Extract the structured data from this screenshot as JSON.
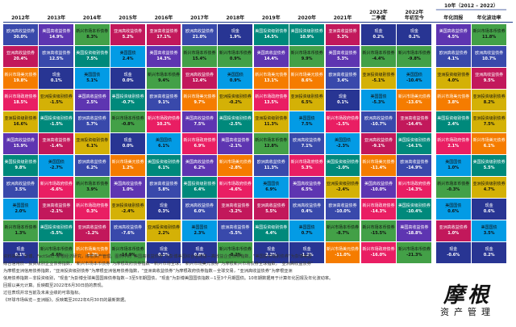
{
  "palette": {
    "欧洲高收益债券": "#3949ab",
    "美国高收益债券": "#5e35b1",
    "美国投资级别债券": "#00897b",
    "亚洲高收益债券": "#c2185b",
    "新兴市场美元债券": "#f57c00",
    "新兴市场本币债券": "#43a047",
    "现金": "#283593",
    "美国国债": "#039be5",
    "新兴市场政府债券": "#e91e63",
    "亚洲投资级别债券": "#d4b106",
    "环球国库债券": "#6a1b9a"
  },
  "chart_data": {
    "type": "table",
    "columns": [
      {
        "header": "2012年"
      },
      {
        "header": "2013年"
      },
      {
        "header": "2014年"
      },
      {
        "header": "2015年"
      },
      {
        "header": "2016年"
      },
      {
        "header": "2017年"
      },
      {
        "header": "2018年"
      },
      {
        "header": "2019年"
      },
      {
        "header": "2020年"
      },
      {
        "header": "2021年"
      },
      {
        "header": "2022年\n二季度"
      },
      {
        "header": "2022年\n年初至今"
      },
      {
        "header": "年化回报"
      },
      {
        "header": "年化波动率"
      }
    ],
    "group_header": "10年（2012 – 2022）",
    "cells": [
      [
        [
          "欧洲高收益债券",
          "30.0%"
        ],
        [
          "美国高收益债券",
          "14.9%"
        ],
        [
          "新兴市场本币债券",
          "8.3%"
        ],
        [
          "亚洲高收益债券",
          "5.2%"
        ],
        [
          "亚洲高收益债券",
          "17.1%"
        ],
        [
          "欧洲高收益债券",
          "21.0%"
        ],
        [
          "现金",
          "1.9%"
        ],
        [
          "美国投资级别债券",
          "14.5%"
        ],
        [
          "美国投资级别债券",
          "10.9%"
        ],
        [
          "亚洲高收益债券",
          "5.3%"
        ],
        [
          "现金",
          "0.2%"
        ],
        [
          "现金",
          "0.2%"
        ],
        [
          "美国高收益债券",
          "4.5%"
        ],
        [
          "新兴市场本币债券",
          "11.8%"
        ]
      ],
      [
        [
          "亚洲高收益债券",
          "20.4%"
        ],
        [
          "欧洲高收益债券",
          "12.5%"
        ],
        [
          "美国投资级别债券",
          "7.5%"
        ],
        [
          "美国国债",
          "2.4%"
        ],
        [
          "美国高收益债券",
          "14.3%"
        ],
        [
          "新兴市场本币债券",
          "15.4%"
        ],
        [
          "新兴市场本币债券",
          "0.9%"
        ],
        [
          "美国高收益债券",
          "14.4%"
        ],
        [
          "新兴市场本币债券",
          "9.9%"
        ],
        [
          "美国高收益债券",
          "5.3%"
        ],
        [
          "新兴市场本币债券",
          "-4.4%"
        ],
        [
          "新兴市场本币债券",
          "-9.8%"
        ],
        [
          "欧洲高收益债券",
          "4.1%"
        ],
        [
          "欧洲高收益债券",
          "10.7%"
        ]
      ],
      [
        [
          "新兴市场美元债券",
          "19.8%"
        ],
        [
          "现金",
          "0.1%"
        ],
        [
          "美国国债",
          "5.1%"
        ],
        [
          "现金",
          "0.0%"
        ],
        [
          "新兴市场本币债券",
          "9.4%"
        ],
        [
          "亚洲高收益债券",
          "12.4%"
        ],
        [
          "美国国债",
          "0.9%"
        ],
        [
          "新兴市场美元债券",
          "13.1%"
        ],
        [
          "新兴市场美元债券",
          "8.6%"
        ],
        [
          "欧洲高收益债券",
          "3.4%"
        ],
        [
          "亚洲投资级别债券",
          "-5.1%"
        ],
        [
          "美国国债",
          "-10.4%"
        ],
        [
          "亚洲投资级别债券",
          "4.0%"
        ],
        [
          "亚洲高收益债券",
          "9.5%"
        ]
      ],
      [
        [
          "新兴市场政府债券",
          "18.5%"
        ],
        [
          "亚洲投资级别债券",
          "-1.5%"
        ],
        [
          "美国高收益债券",
          "2.5%"
        ],
        [
          "美国投资级别债券",
          "-0.7%"
        ],
        [
          "欧洲高收益债券",
          "9.1%"
        ],
        [
          "新兴市场美元债券",
          "9.7%"
        ],
        [
          "亚洲投资级别债券",
          "-0.2%"
        ],
        [
          "新兴市场政府债券",
          "13.5%"
        ],
        [
          "亚洲投资级别债券",
          "6.5%"
        ],
        [
          "现金",
          "0.1%"
        ],
        [
          "美国国债",
          "-5.3%"
        ],
        [
          "新兴市场美元债券",
          "-13.6%"
        ],
        [
          "新兴市场美元债券",
          "3.8%"
        ],
        [
          "亚洲投资级别债券",
          "8.2%"
        ]
      ],
      [
        [
          "亚洲投资级别债券",
          "16.6%"
        ],
        [
          "美国投资级别债券",
          "-1.5%"
        ],
        [
          "欧洲高收益债券",
          "5.7%"
        ],
        [
          "新兴市场本币债券",
          "-0.8%"
        ],
        [
          "新兴市场政府债券",
          "10.2%"
        ],
        [
          "美国高收益债券",
          "7.5%"
        ],
        [
          "美国投资级别债券",
          "-2.5%"
        ],
        [
          "亚洲投资级别债券",
          "11.3%"
        ],
        [
          "美国国债",
          "7.5%"
        ],
        [
          "新兴市场政府债券",
          "-1.5%"
        ],
        [
          "欧洲高收益债券",
          "-10.7%"
        ],
        [
          "亚洲高收益债券",
          "-14.4%"
        ],
        [
          "美国投资级别债券",
          "2.4%"
        ],
        [
          "亚洲投资级别债券",
          "7.5%"
        ]
      ],
      [
        [
          "美国高收益债券",
          "15.9%"
        ],
        [
          "亚洲高收益债券",
          "-1.4%"
        ],
        [
          "亚洲投资级别债券",
          "6.1%"
        ],
        [
          "现金",
          "0.0%"
        ],
        [
          "美国国债",
          "6.1%"
        ],
        [
          "新兴市场政府债券",
          "6.9%"
        ],
        [
          "美国高收益债券",
          "-2.1%"
        ],
        [
          "新兴市场本币债券",
          "12.8%"
        ],
        [
          "欧洲高收益债券",
          "7.1%"
        ],
        [
          "美国国债",
          "-2.3%"
        ],
        [
          "亚洲高收益债券",
          "-9.1%"
        ],
        [
          "美国投资级别债券",
          "-14.1%"
        ],
        [
          "新兴市场政府债券",
          "2.1%"
        ],
        [
          "新兴市场美元债券",
          "6.1%"
        ]
      ],
      [
        [
          "美国投资级别债券",
          "9.8%"
        ],
        [
          "美国国债",
          "-2.7%"
        ],
        [
          "欧洲高收益债券",
          "6.2%"
        ],
        [
          "新兴市场美元债券",
          "1.2%"
        ],
        [
          "美国投资级别债券",
          "6.1%"
        ],
        [
          "美国高收益债券",
          "6.2%"
        ],
        [
          "新兴市场美元债券",
          "-2.8%"
        ],
        [
          "欧洲高收益债券",
          "11.3%"
        ],
        [
          "新兴市场政府债券",
          "5.3%"
        ],
        [
          "美国投资级别债券",
          "-1.0%"
        ],
        [
          "新兴市场美元债券",
          "-11.4%"
        ],
        [
          "欧洲高收益债券",
          "-14.9%"
        ],
        [
          "美国国债",
          "1.0%"
        ],
        [
          "美国投资级别债券",
          "5.5%"
        ]
      ],
      [
        [
          "欧洲高收益债券",
          "3.5%"
        ],
        [
          "新兴市场政府债券",
          "-6.6%"
        ],
        [
          "新兴市场本币债券",
          "3.9%"
        ],
        [
          "美国高收益债券",
          "1.0%"
        ],
        [
          "欧洲高收益债券",
          "5.8%"
        ],
        [
          "美国投资级别债券",
          "6.4%"
        ],
        [
          "新兴市场政府债券",
          "-4.6%"
        ],
        [
          "美国国债",
          "6.9%"
        ],
        [
          "美国高收益债券",
          "6.5%"
        ],
        [
          "亚洲投资级别债券",
          "-2.4%"
        ],
        [
          "美国高收益债券",
          "-10.0%"
        ],
        [
          "新兴市场政府债券",
          "-14.3%"
        ],
        [
          "新兴市场本币债券",
          "-0.3%"
        ],
        [
          "亚洲投资级别债券",
          "4.7%"
        ]
      ],
      [
        [
          "美国国债",
          "2.0%"
        ],
        [
          "亚洲高收益债券",
          "-2.1%"
        ],
        [
          "新兴市场政府债券",
          "0.3%"
        ],
        [
          "亚洲投资级别债券",
          "-2.4%"
        ],
        [
          "现金",
          "0.3%"
        ],
        [
          "欧洲高收益债券",
          "6.0%"
        ],
        [
          "亚洲高收益债券",
          "-3.2%"
        ],
        [
          "亚洲高收益债券",
          "5.5%"
        ],
        [
          "欧洲高收益债券",
          "0.4%"
        ],
        [
          "欧洲高收益债券",
          "-10.0%"
        ],
        [
          "新兴市场政府债券",
          "-14.3%"
        ],
        [
          "美国投资级别债券",
          "-10.4%"
        ],
        [
          "美国国债",
          "0.6%"
        ],
        [
          "现金",
          "0.6%"
        ]
      ],
      [
        [
          "新兴市场本币债券",
          "1.3%"
        ],
        [
          "美国投资级别债券",
          "-5.5%"
        ],
        [
          "亚洲高收益债券",
          "-1.2%"
        ],
        [
          "欧洲高收益债券",
          "-7.6%"
        ],
        [
          "亚洲投资级别债券",
          "2.2%"
        ],
        [
          "美国国债",
          "2.3%"
        ],
        [
          "欧洲高收益债券",
          "-5.5%"
        ],
        [
          "美国投资级别债券",
          "4.4%"
        ],
        [
          "美国国债",
          "0.7%"
        ],
        [
          "新兴市场本币债券",
          "-8.7%"
        ],
        [
          "新兴市场本币债券",
          "-15.5%"
        ],
        [
          "美国高收益债券",
          "-18.8%"
        ],
        [
          "亚洲高收益债券",
          "1.0%"
        ],
        [
          "美国国债",
          "3.5%"
        ]
      ],
      [
        [
          "现金",
          "0.1%"
        ],
        [
          "新兴市场本币债券",
          "-6.6%"
        ],
        [
          "新兴市场美元债券",
          "-1.2%"
        ],
        [
          "新兴市场本币债券",
          "-14.9%"
        ],
        [
          "现金",
          "0.3%"
        ],
        [
          "现金",
          "0.8%"
        ],
        [
          "新兴市场本币债券",
          "-8.2%"
        ],
        [
          "现金",
          "2.2%"
        ],
        [
          "现金",
          "-1.2%"
        ],
        [
          "新兴市场美元债券",
          "-11.0%"
        ],
        [
          "新兴市场政府债券",
          "-16.0%"
        ],
        [
          "新兴市场本币债券",
          "-21.3%"
        ],
        [
          "现金",
          "-0.6%"
        ],
        [
          "现金",
          "0.2%"
        ]
      ]
    ]
  },
  "footnote": {
    "lines": [
      "资料来源：彭博，FactSet，摩根经济研究，摩根资产管理。图例中的“美国高收益债券”为彭博美国综合信用债－高收益企业债券指数，“美国投资级别债券”为彭博美国",
      "综合信用债－投资级别企业债券指数，“新兴市场本币债券”为摩根政府债券指数－新兴市场全球，“新兴市场美元债券”为摩根新兴市场债券全球指数，“亚洲高收益债券”",
      "为摩根亚洲信用债券指数，“亚洲投资级别债券”为摩根亚洲信用债券指数，“亚洲高收益债券”为摩根政府债券指数－全球交易，“亚洲高收益债券”为摩根亚洲",
      "信用债券指数－非投资级别，“现金”为彭博全球美国国库债券指数－3至5年期国债，“现金”为彭博美国国债指数－1至3个月期国债。10年期数据用于计算年化回报及年化波动率。",
      "回报以美元计算。反映截至2022年6月30日前的表现。",
      "过往表现并非当前及未来业绩的可靠指标。",
      "《环球市场纵览－亚洲版》。反映截至2022年6月30日的最新数据。"
    ]
  },
  "logo": {
    "mark": "摩根",
    "sub": "资产管理"
  }
}
